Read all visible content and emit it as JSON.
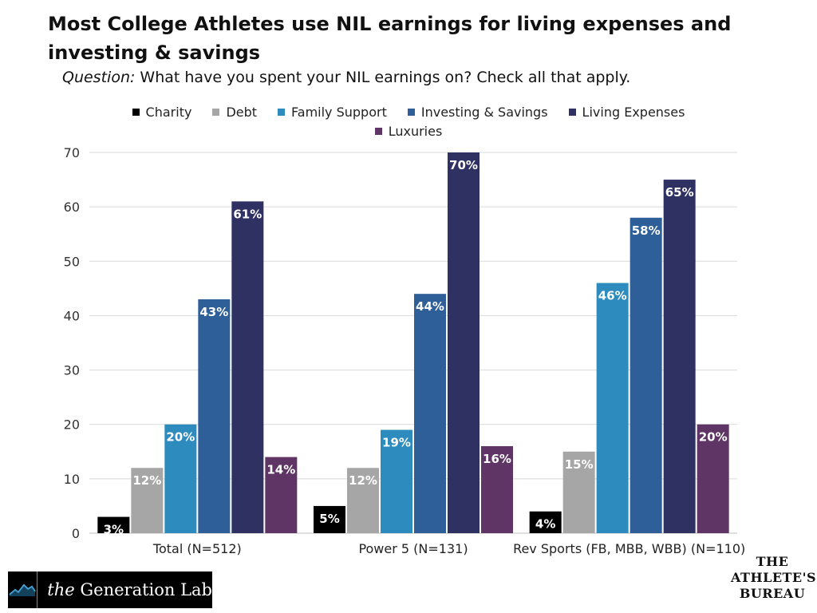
{
  "title": "Most College Athletes use NIL earnings for living expenses and investing & savings",
  "subtitle": {
    "question_label": "Question:",
    "question_text": " What have you spent your NIL earnings on? Check all that apply."
  },
  "colors": {
    "Charity": "#000000",
    "Debt": "#a6a6a6",
    "Family Support": "#2e8bbe",
    "Investing & Savings": "#2e5f99",
    "Living Expenses": "#2f3163",
    "Luxuries": "#5e3564"
  },
  "chart_data": {
    "type": "bar",
    "title": "",
    "xlabel": "",
    "ylabel": "",
    "ylim": [
      0,
      70
    ],
    "yticks": [
      0,
      10,
      20,
      30,
      40,
      50,
      60,
      70
    ],
    "grid": true,
    "legend_position": "top",
    "categories": [
      "Total (N=512)",
      "Power 5 (N=131)",
      "Rev Sports (FB, MBB, WBB) (N=110)"
    ],
    "series": [
      {
        "name": "Charity",
        "values": [
          3,
          5,
          4
        ],
        "labels": [
          "3%",
          "5%",
          "4%"
        ]
      },
      {
        "name": "Debt",
        "values": [
          12,
          12,
          15
        ],
        "labels": [
          "12%",
          "12%",
          "15%"
        ]
      },
      {
        "name": "Family Support",
        "values": [
          20,
          19,
          46
        ],
        "labels": [
          "20%",
          "19%",
          "46%"
        ]
      },
      {
        "name": "Investing & Savings",
        "values": [
          43,
          44,
          58
        ],
        "labels": [
          "43%",
          "44%",
          "58%"
        ]
      },
      {
        "name": "Living Expenses",
        "values": [
          61,
          70,
          65
        ],
        "labels": [
          "61%",
          "70%",
          "65%"
        ]
      },
      {
        "name": "Luxuries",
        "values": [
          14,
          16,
          20
        ],
        "labels": [
          "14%",
          "16%",
          "20%"
        ]
      }
    ]
  },
  "logos": {
    "generation_lab": {
      "prefix": "the",
      "name": "Generation Lab",
      "icon": "mountain-icon"
    },
    "athletes_bureau": {
      "line1": "THE",
      "line2": "ATHLETE'S",
      "line3": "BUREAU"
    }
  }
}
